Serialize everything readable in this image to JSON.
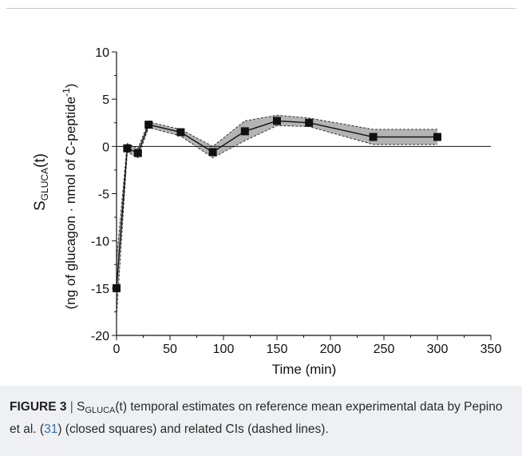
{
  "chart_data": {
    "type": "line",
    "xlabel": "Time (min)",
    "ylabel_main": "S",
    "ylabel_sub": "GLUCA",
    "ylabel_arg": "(t)",
    "ylabel_units_pre": "(ng of glucagon · nmol of C-peptide",
    "ylabel_units_sup": "-1",
    "ylabel_units_post": ")",
    "xlim": [
      0,
      350
    ],
    "ylim": [
      -20,
      10
    ],
    "x_ticks": [
      0,
      50,
      100,
      150,
      200,
      250,
      300,
      350
    ],
    "y_ticks": [
      -20,
      -15,
      -10,
      -5,
      0,
      5,
      10
    ],
    "zero_line": true,
    "grid": false,
    "colors": {
      "band": "#b4b4b4",
      "line": "#111111",
      "marker": "#111111"
    },
    "series": [
      {
        "x": [
          0,
          10,
          20,
          30,
          60,
          90,
          120,
          150,
          180,
          240,
          300
        ],
        "y": [
          -15.0,
          -0.2,
          -0.7,
          2.3,
          1.5,
          -0.6,
          1.6,
          2.7,
          2.5,
          1.0,
          1.0
        ]
      }
    ],
    "ci_lower": {
      "x": [
        0,
        10,
        20,
        30,
        60,
        90,
        120,
        150,
        180,
        240,
        300
      ],
      "y": [
        -18.0,
        -0.6,
        -1.2,
        2.0,
        1.1,
        -1.2,
        0.6,
        2.2,
        2.1,
        0.2,
        0.2
      ]
    },
    "ci_upper": {
      "x": [
        0,
        10,
        20,
        30,
        60,
        90,
        120,
        150,
        180,
        240,
        300
      ],
      "y": [
        -12.0,
        0.3,
        -0.2,
        2.6,
        1.8,
        0.0,
        2.7,
        3.3,
        3.0,
        1.8,
        1.8
      ]
    }
  },
  "caption": {
    "label": "FIGURE 3",
    "separator": "|",
    "s": "S",
    "sub": "GLUCA",
    "text_1": "(t) temporal estimates on reference mean experimental data by Pepino et al. (",
    "ref": "31",
    "text_2": ") (closed squares) and related CIs (dashed lines)."
  }
}
